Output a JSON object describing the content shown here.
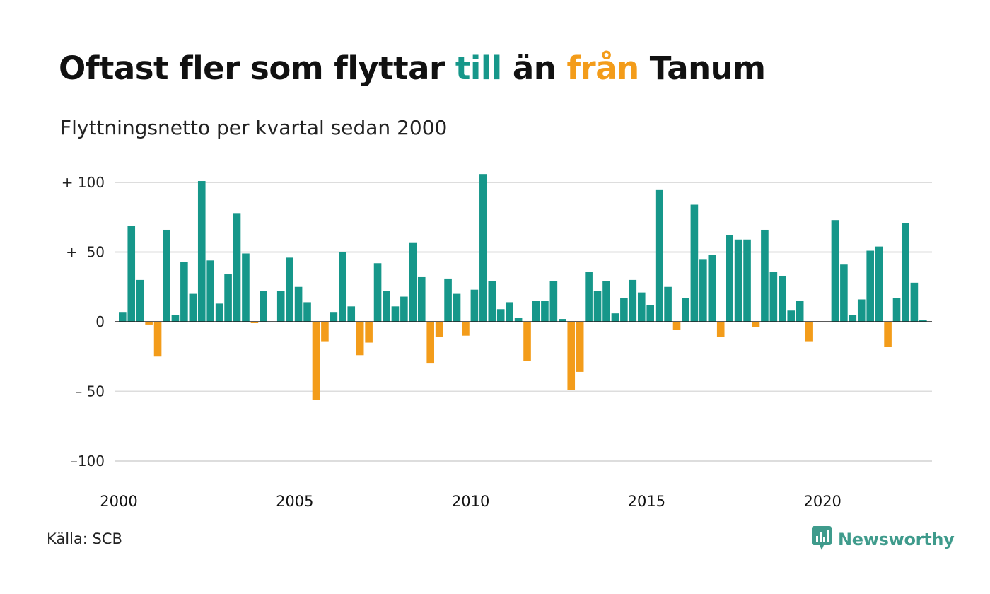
{
  "header": {
    "title_part1": "Oftast fler som flyttar ",
    "title_pos": "till",
    "title_part2": " än ",
    "title_neg": "från",
    "title_part3": " Tanum",
    "subtitle": "Flyttningsnetto per kvartal sedan 2000"
  },
  "footer": {
    "source": "Källa: SCB",
    "brand": "Newsworthy",
    "brand_icon": "newsworthy-logo-icon"
  },
  "colors": {
    "positive": "#16978a",
    "negative": "#f39c1a",
    "grid": "#dddddd",
    "axis": "#222222",
    "brand": "#3f9b8c"
  },
  "chart_data": {
    "type": "bar",
    "title": "Oftast fler som flyttar till än från Tanum",
    "subtitle": "Flyttningsnetto per kvartal sedan 2000",
    "x_start_year": 2000,
    "periods_per_year": 4,
    "x_ticks": [
      "2000",
      "2005",
      "2010",
      "2015",
      "2020"
    ],
    "y_ticks": [
      {
        "value": 100,
        "label": "+ 100"
      },
      {
        "value": 50,
        "label": "+  50"
      },
      {
        "value": 0,
        "label": "0"
      },
      {
        "value": -50,
        "label": "– 50"
      },
      {
        "value": -100,
        "label": "–100"
      }
    ],
    "ylim": [
      -100,
      100
    ],
    "grid": true,
    "values": [
      7,
      69,
      30,
      -2,
      -25,
      66,
      5,
      43,
      20,
      101,
      44,
      13,
      34,
      78,
      49,
      -1,
      22,
      0,
      22,
      46,
      25,
      14,
      -56,
      -14,
      7,
      50,
      11,
      -24,
      -15,
      42,
      22,
      11,
      18,
      57,
      32,
      -30,
      -11,
      31,
      20,
      -10,
      23,
      106,
      29,
      9,
      14,
      3,
      -28,
      15,
      15,
      29,
      2,
      -49,
      -36,
      36,
      22,
      29,
      6,
      17,
      30,
      21,
      12,
      95,
      25,
      -6,
      17,
      84,
      45,
      48,
      -11,
      62,
      59,
      59,
      -4,
      66,
      36,
      33,
      8,
      15,
      -14,
      0,
      0,
      73,
      41,
      5,
      16,
      51,
      54,
      -18,
      17,
      71,
      28,
      1
    ]
  }
}
